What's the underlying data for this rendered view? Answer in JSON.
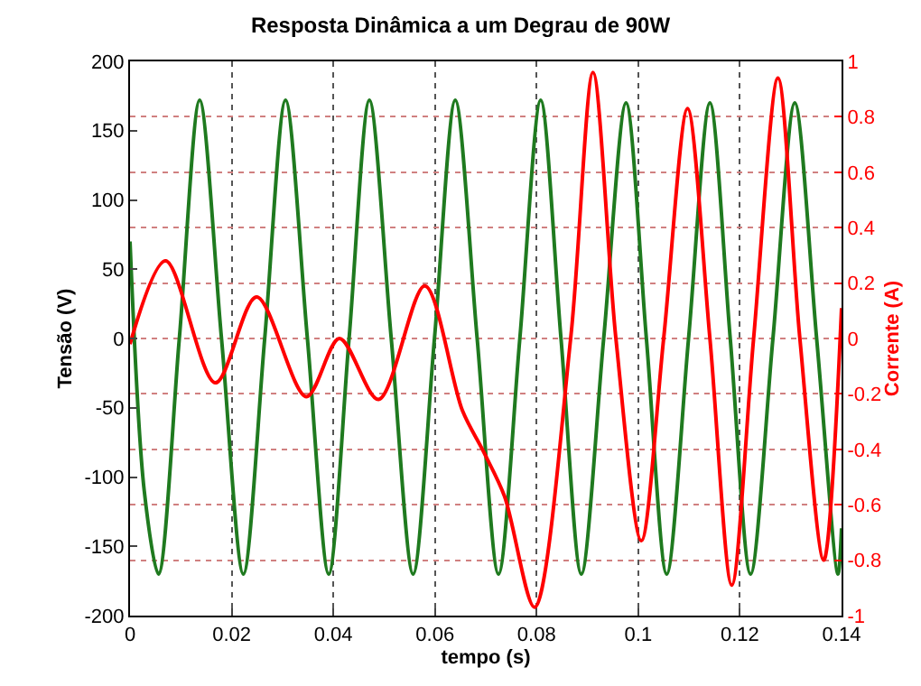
{
  "chart_data": {
    "type": "line",
    "title": "Resposta Dinâmica a um Degrau de 90W",
    "xlabel": "tempo (s)",
    "ylabel": "Tensão (V)",
    "y2label": "Corrente (A)",
    "xlim": [
      0,
      0.14
    ],
    "xticks": [
      0,
      0.02,
      0.04,
      0.06,
      0.08,
      0.1,
      0.12,
      0.14
    ],
    "ylim": [
      -200,
      200
    ],
    "yticks": [
      -200,
      -150,
      -100,
      -50,
      0,
      50,
      100,
      150,
      200
    ],
    "y2lim": [
      -1,
      1
    ],
    "y2ticks": [
      -1,
      -0.8,
      -0.6,
      -0.4,
      -0.2,
      0,
      0.2,
      0.4,
      0.6,
      0.8,
      1
    ],
    "grid": true,
    "legend": false,
    "line_style": "solid",
    "series": [
      {
        "color": "#1f7a1f",
        "x": [
          0,
          0.0028,
          0.0056,
          0.0097,
          0.0137,
          0.018,
          0.0223,
          0.0265,
          0.0306,
          0.0349,
          0.0391,
          0.0431,
          0.0471,
          0.0514,
          0.0557,
          0.0599,
          0.064,
          0.0683,
          0.0725,
          0.0767,
          0.0808,
          0.0848,
          0.0888,
          0.0932,
          0.0976,
          0.1016,
          0.1056,
          0.1099,
          0.1141,
          0.1181,
          0.1221,
          0.1265,
          0.1308,
          0.1351,
          0.1393,
          0.14
        ],
        "values": [
          70,
          -110,
          -170,
          0,
          172,
          0,
          -170,
          0,
          172,
          0,
          -170,
          0,
          172,
          0,
          -170,
          0,
          172,
          0,
          -170,
          0,
          172,
          0,
          -170,
          0,
          170,
          0,
          -170,
          0,
          170,
          0,
          -170,
          0,
          170,
          0,
          -170,
          -137
        ]
      },
      {
        "color": "#ff0000",
        "axis": "y2",
        "x": [
          0,
          0.007,
          0.0168,
          0.0249,
          0.0347,
          0.0412,
          0.0489,
          0.058,
          0.0654,
          0.0696,
          0.0737,
          0.0796,
          0.0867,
          0.0911,
          0.0956,
          0.1006,
          0.105,
          0.1097,
          0.1141,
          0.1184,
          0.1227,
          0.1275,
          0.1318,
          0.1365,
          0.14
        ],
        "values": [
          -0.02,
          0.28,
          -0.16,
          0.15,
          -0.21,
          0.0,
          -0.22,
          0.19,
          -0.26,
          -0.41,
          -0.57,
          -0.97,
          0,
          0.96,
          0,
          -0.73,
          0,
          0.83,
          0,
          -0.89,
          0,
          0.94,
          0,
          -0.8,
          0.11
        ]
      }
    ]
  }
}
